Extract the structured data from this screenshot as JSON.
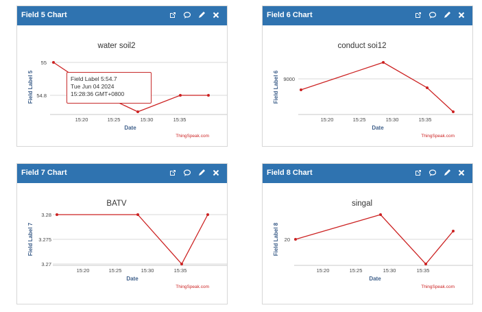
{
  "widgets": [
    {
      "header": "Field 5 Chart",
      "chart_data": {
        "type": "line",
        "title": "water soil2",
        "xlabel": "Date",
        "ylabel": "Field Label 5",
        "credit": "ThingSpeak.com",
        "x_ticks": [
          "15:20",
          "15:25",
          "15:30",
          "15:35"
        ],
        "y_ticks": [
          "55",
          "54.8"
        ],
        "series": [
          {
            "x": [
              "15:16",
              "15:28",
              "15:34",
              "15:39"
            ],
            "y": [
              55,
              54.7,
              54.8,
              54.8
            ]
          }
        ],
        "color": "#cc2222"
      },
      "tooltip": {
        "line1": "Field Label 5:54.7",
        "line2": "Tue Jun 04 2024",
        "line3": "15:28:36 GMT+0800"
      }
    },
    {
      "header": "Field 6 Chart",
      "chart_data": {
        "type": "line",
        "title": "conduct soi12",
        "xlabel": "Date",
        "ylabel": "Field Label 6",
        "credit": "ThingSpeak.com",
        "x_ticks": [
          "15:20",
          "15:25",
          "15:30",
          "15:35"
        ],
        "y_ticks": [
          "9000"
        ],
        "series": [
          {
            "x": [
              "15:16",
              "15:28",
              "15:34",
              "15:39"
            ],
            "y": [
              8700,
              9480,
              8770,
              8100
            ]
          }
        ],
        "color": "#cc2222"
      }
    },
    {
      "header": "Field 7 Chart",
      "chart_data": {
        "type": "line",
        "title": "BATV",
        "xlabel": "Date",
        "ylabel": "Field Label 7",
        "credit": "ThingSpeak.com",
        "x_ticks": [
          "15:20",
          "15:25",
          "15:30",
          "15:35"
        ],
        "y_ticks": [
          "3.28",
          "3.275",
          "3.27"
        ],
        "series": [
          {
            "x": [
              "15:16",
              "15:28",
              "15:34",
              "15:39"
            ],
            "y": [
              3.28,
              3.28,
              3.27,
              3.28
            ]
          }
        ],
        "color": "#cc2222"
      }
    },
    {
      "header": "Field 8 Chart",
      "chart_data": {
        "type": "line",
        "title": "singal",
        "xlabel": "Date",
        "ylabel": "Field Label 8",
        "credit": "ThingSpeak.com",
        "x_ticks": [
          "15:20",
          "15:25",
          "15:30",
          "15:35"
        ],
        "y_ticks": [
          "20"
        ],
        "series": [
          {
            "x": [
              "15:16",
              "15:28",
              "15:34",
              "15:39"
            ],
            "y": [
              20,
              21,
              19,
              20.3
            ]
          }
        ],
        "color": "#cc2222"
      }
    }
  ],
  "icons": {
    "open": "external-link-icon",
    "comment": "comment-icon",
    "edit": "pencil-icon",
    "close": "close-icon"
  }
}
